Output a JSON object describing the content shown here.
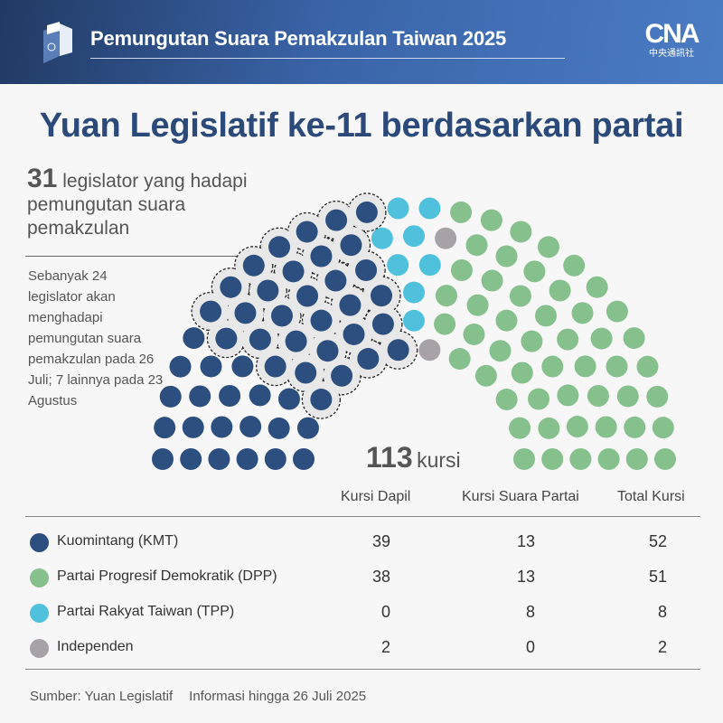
{
  "header": {
    "title": "Pemungutan Suara Pemakzulan Taiwan 2025",
    "logo_text": "CNA",
    "logo_subtext": "中央通訊社"
  },
  "main_title": "Yuan Legislatif ke-11 berdasarkan partai",
  "lead": {
    "number": "31",
    "text": "legislator yang hadapi pemungutan suara pemakzulan"
  },
  "note": "Sebanyak 24 legislator akan menghadapi pemungutan suara pemakzulan pada 26 Juli; 7 lainnya pada 23 Agustus",
  "total": {
    "number": "113",
    "unit": "kursi"
  },
  "table": {
    "headers": [
      "Kursi Dapil",
      "Kursi Suara Partai",
      "Total Kursi"
    ],
    "rows": [
      {
        "party": "Kuomintang (KMT)",
        "color": "#2c4f80",
        "dapil": "39",
        "partai": "13",
        "total": "52"
      },
      {
        "party": "Partai Progresif Demokratik (DPP)",
        "color": "#86c08d",
        "dapil": "38",
        "partai": "13",
        "total": "51"
      },
      {
        "party": "Partai Rakyat Taiwan (TPP)",
        "color": "#4fc1dc",
        "dapil": "0",
        "partai": "8",
        "total": "8"
      },
      {
        "party": "Independen",
        "color": "#a6a2a6",
        "dapil": "2",
        "partai": "0",
        "total": "2"
      }
    ]
  },
  "footer": {
    "source": "Sumber: Yuan Legislatif",
    "info": "Informasi hingga 26 Juli 2025"
  },
  "chart_data": {
    "type": "parliament",
    "total_seats": 113,
    "series": [
      {
        "name": "Kuomintang (KMT)",
        "value": 52,
        "color": "#2c4f80"
      },
      {
        "name": "Partai Rakyat Taiwan (TPP)",
        "value": 8,
        "color": "#4fc1dc"
      },
      {
        "name": "Independen",
        "value": 2,
        "color": "#a6a2a6"
      },
      {
        "name": "Partai Progresif Demokratik (DPP)",
        "value": 51,
        "color": "#86c08d"
      }
    ],
    "highlighted": {
      "party": "Kuomintang (KMT)",
      "count": 31,
      "style": "dashed-outline"
    }
  }
}
